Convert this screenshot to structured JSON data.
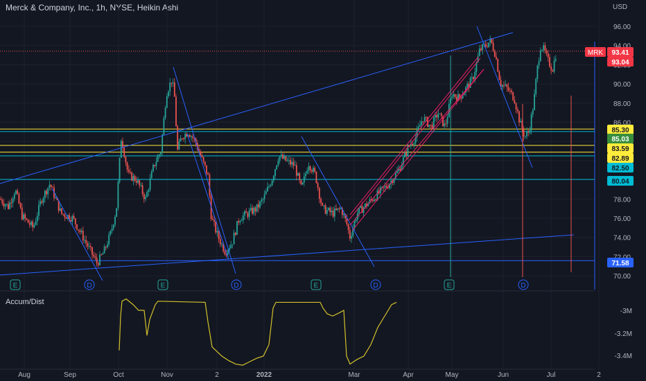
{
  "header": {
    "title": "Merck & Company, Inc., 1h, NYSE, Heikin Ashi",
    "currency": "USD"
  },
  "indicator": {
    "name": "Accum/Dist"
  },
  "colors": {
    "background": "#131722",
    "up": "#26a69a",
    "down": "#ef5350",
    "trendline": "#2962ff",
    "yellow_level": "#ffeb3b",
    "cyan_level": "#00bcd4",
    "accum_line": "#d4c22a"
  },
  "chart_data": {
    "type": "candlestick",
    "x_ticks": [
      "Aug",
      "Sep",
      "Oct",
      "Nov",
      "2",
      "2022",
      "Mar",
      "Apr",
      "May",
      "Jun",
      "Jul",
      "2"
    ],
    "y_ticks": [
      "96.00",
      "94.00",
      "92.00",
      "90.00",
      "88.00",
      "86.00",
      "84.00",
      "82.00",
      "80.00",
      "78.00",
      "76.00",
      "74.00",
      "72.00",
      "70.00"
    ],
    "ylim": [
      69.0,
      97.5
    ],
    "indicator_ticks": [
      "-3M",
      "-3.2M",
      "-3.4M"
    ],
    "symbol_label": "MRK",
    "price_labels": [
      {
        "value": "93.41",
        "style": "red"
      },
      {
        "value": "93.04",
        "style": "red"
      },
      {
        "value": "85.30",
        "style": "yellow"
      },
      {
        "value": "85.03",
        "style": "green"
      },
      {
        "value": "83.59",
        "style": "yellow"
      },
      {
        "value": "82.89",
        "style": "yellow"
      },
      {
        "value": "82.50",
        "style": "cyan"
      },
      {
        "value": "80.04",
        "style": "cyan"
      },
      {
        "value": "71.58",
        "style": "blue"
      }
    ],
    "horizontal_levels": [
      {
        "price": 85.3,
        "color": "yellow"
      },
      {
        "price": 85.03,
        "color": "cyan"
      },
      {
        "price": 83.59,
        "color": "yellow"
      },
      {
        "price": 82.89,
        "color": "yellow"
      },
      {
        "price": 82.5,
        "color": "cyan"
      },
      {
        "price": 80.04,
        "color": "cyan"
      },
      {
        "price": 71.58,
        "color": "blue"
      }
    ],
    "event_markers": [
      "E",
      "D",
      "E",
      "D",
      "E",
      "D",
      "E",
      "D"
    ],
    "price_path": [
      [
        0,
        78.0
      ],
      [
        12,
        77.2
      ],
      [
        22,
        79.0
      ],
      [
        32,
        76.2
      ],
      [
        48,
        75.0
      ],
      [
        60,
        78.0
      ],
      [
        72,
        79.6
      ],
      [
        88,
        76.5
      ],
      [
        105,
        76.0
      ],
      [
        120,
        74.0
      ],
      [
        140,
        71.3
      ],
      [
        150,
        72.5
      ],
      [
        160,
        74.5
      ],
      [
        168,
        77.0
      ],
      [
        175,
        84.5
      ],
      [
        185,
        80.5
      ],
      [
        197,
        80.0
      ],
      [
        210,
        78.0
      ],
      [
        222,
        81.5
      ],
      [
        232,
        83.0
      ],
      [
        240,
        89.0
      ],
      [
        248,
        90.5
      ],
      [
        252,
        88.5
      ],
      [
        256,
        83.0
      ],
      [
        262,
        84.5
      ],
      [
        272,
        85.0
      ],
      [
        282,
        84.0
      ],
      [
        292,
        82.0
      ],
      [
        300,
        80.5
      ],
      [
        305,
        76.0
      ],
      [
        315,
        74.0
      ],
      [
        325,
        72.5
      ],
      [
        335,
        73.5
      ],
      [
        345,
        76.0
      ],
      [
        358,
        76.5
      ],
      [
        370,
        77.0
      ],
      [
        380,
        78.0
      ],
      [
        392,
        80.0
      ],
      [
        402,
        82.5
      ],
      [
        412,
        82.0
      ],
      [
        425,
        81.5
      ],
      [
        435,
        79.0
      ],
      [
        445,
        81.8
      ],
      [
        455,
        80.5
      ],
      [
        465,
        77.0
      ],
      [
        480,
        76.5
      ],
      [
        492,
        77.0
      ],
      [
        500,
        75.5
      ],
      [
        505,
        74.0
      ],
      [
        515,
        76.5
      ],
      [
        530,
        77.5
      ],
      [
        545,
        78.5
      ],
      [
        560,
        79.5
      ],
      [
        575,
        81.0
      ],
      [
        590,
        83.5
      ],
      [
        600,
        84.5
      ],
      [
        610,
        86.5
      ],
      [
        622,
        85.5
      ],
      [
        632,
        87.0
      ],
      [
        642,
        85.5
      ],
      [
        652,
        89.0
      ],
      [
        662,
        88.5
      ],
      [
        672,
        89.5
      ],
      [
        682,
        90.5
      ],
      [
        692,
        93.5
      ],
      [
        700,
        94.0
      ],
      [
        708,
        94.5
      ],
      [
        715,
        93.0
      ],
      [
        722,
        90.0
      ],
      [
        732,
        89.5
      ],
      [
        742,
        88.5
      ],
      [
        750,
        86.0
      ],
      [
        757,
        84.5
      ],
      [
        763,
        85.0
      ],
      [
        770,
        88.0
      ],
      [
        775,
        91.5
      ],
      [
        780,
        94.0
      ],
      [
        785,
        93.5
      ],
      [
        790,
        92.5
      ],
      [
        797,
        91.5
      ],
      [
        803,
        93.4
      ]
    ],
    "accum_dist": [
      [
        172,
        -3.35
      ],
      [
        174,
        -3.05
      ],
      [
        176,
        -2.92
      ],
      [
        182,
        -2.9
      ],
      [
        192,
        -2.95
      ],
      [
        200,
        -3.0
      ],
      [
        208,
        -3.0
      ],
      [
        212,
        -3.22
      ],
      [
        216,
        -3.08
      ],
      [
        224,
        -2.95
      ],
      [
        228,
        -2.92
      ],
      [
        296,
        -2.93
      ],
      [
        300,
        -3.1
      ],
      [
        306,
        -3.32
      ],
      [
        320,
        -3.4
      ],
      [
        330,
        -3.44
      ],
      [
        340,
        -3.47
      ],
      [
        350,
        -3.48
      ],
      [
        360,
        -3.45
      ],
      [
        370,
        -3.42
      ],
      [
        380,
        -3.4
      ],
      [
        388,
        -3.3
      ],
      [
        394,
        -2.98
      ],
      [
        398,
        -2.93
      ],
      [
        462,
        -2.93
      ],
      [
        466,
        -2.98
      ],
      [
        472,
        -3.03
      ],
      [
        480,
        -3.05
      ],
      [
        490,
        -3.02
      ],
      [
        496,
        -3.0
      ],
      [
        500,
        -3.4
      ],
      [
        505,
        -3.47
      ],
      [
        515,
        -3.43
      ],
      [
        525,
        -3.4
      ],
      [
        535,
        -3.3
      ],
      [
        545,
        -3.15
      ],
      [
        555,
        -3.05
      ],
      [
        565,
        -2.95
      ],
      [
        572,
        -2.93
      ]
    ]
  }
}
